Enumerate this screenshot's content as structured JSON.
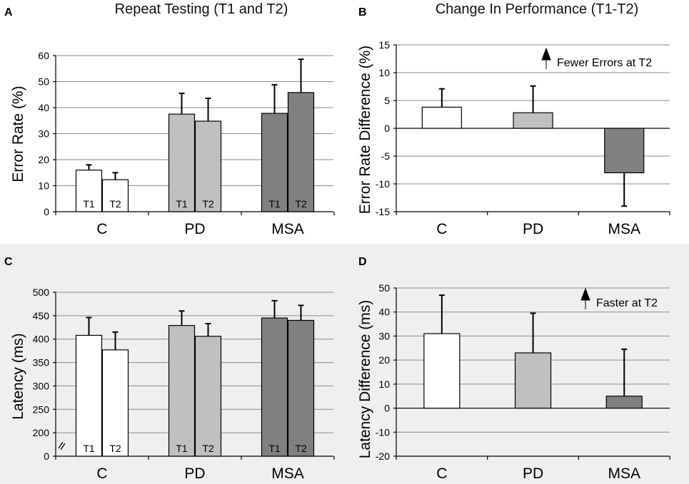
{
  "colors": {
    "C": "#ffffff",
    "PD": "#c0c0c0",
    "MSA": "#808080",
    "panel_bg_bottom": "#efefef"
  },
  "chart_data": [
    {
      "id": "A",
      "panel_label": "A",
      "title": "Repeat Testing (T1 and T2)",
      "type": "bar",
      "ylabel": "Error Rate (%)",
      "ylim": [
        0,
        60
      ],
      "yticks": [
        0,
        10,
        20,
        30,
        40,
        50,
        60
      ],
      "categories": [
        "C",
        "PD",
        "MSA"
      ],
      "series": [
        {
          "name": "T1",
          "values": [
            16,
            37.5,
            37.8
          ],
          "errors": [
            2,
            8,
            11
          ]
        },
        {
          "name": "T2",
          "values": [
            12.3,
            34.8,
            45.8
          ],
          "errors": [
            2.7,
            8.8,
            12.8
          ]
        }
      ],
      "bar_labels": [
        "T1",
        "T2"
      ]
    },
    {
      "id": "B",
      "panel_label": "B",
      "title": "Change In Performance (T1-T2)",
      "type": "bar",
      "ylabel": "Error Rate Difference (%)",
      "ylim": [
        -15,
        15
      ],
      "yticks": [
        -15,
        -10,
        -5,
        0,
        5,
        10,
        15
      ],
      "categories": [
        "C",
        "PD",
        "MSA"
      ],
      "values": [
        3.8,
        2.8,
        -8
      ],
      "errors": [
        3.3,
        4.8,
        6
      ],
      "annotation": "Fewer Errors at T2"
    },
    {
      "id": "C",
      "panel_label": "C",
      "type": "bar",
      "ylabel": "Latency (ms)",
      "ylim": [
        150,
        500
      ],
      "yticks": [
        0,
        200,
        250,
        300,
        350,
        400,
        450,
        500
      ],
      "axis_break": true,
      "categories": [
        "C",
        "PD",
        "MSA"
      ],
      "series": [
        {
          "name": "T1",
          "values": [
            408,
            429,
            445
          ],
          "errors": [
            38,
            31,
            37
          ]
        },
        {
          "name": "T2",
          "values": [
            377,
            406,
            440
          ],
          "errors": [
            38,
            27,
            32
          ]
        }
      ],
      "bar_labels": [
        "T1",
        "T2"
      ]
    },
    {
      "id": "D",
      "panel_label": "D",
      "type": "bar",
      "ylabel": "Latency Difference (ms)",
      "ylim": [
        -20,
        50
      ],
      "yticks": [
        -20,
        -10,
        0,
        10,
        20,
        30,
        40,
        50
      ],
      "categories": [
        "C",
        "PD",
        "MSA"
      ],
      "values": [
        31,
        23,
        5
      ],
      "errors": [
        16,
        16.5,
        19.5
      ],
      "annotation": "Faster at T2"
    }
  ]
}
